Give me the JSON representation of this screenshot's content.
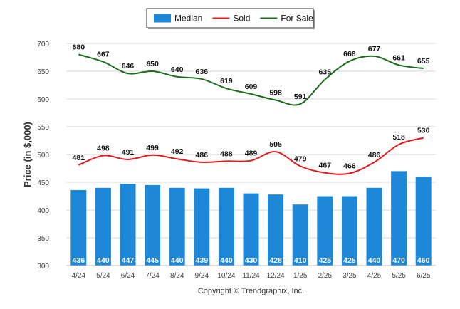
{
  "chart_data": {
    "type": "bar",
    "categories": [
      "4/24",
      "5/24",
      "6/24",
      "7/24",
      "8/24",
      "9/24",
      "10/24",
      "11/24",
      "12/24",
      "1/25",
      "2/25",
      "3/25",
      "4/25",
      "5/25",
      "6/25"
    ],
    "series": [
      {
        "name": "Median",
        "type": "bar",
        "color": "#1e88d8",
        "values": [
          436,
          440,
          447,
          445,
          440,
          439,
          440,
          430,
          428,
          410,
          425,
          425,
          440,
          470,
          460
        ]
      },
      {
        "name": "Sold",
        "type": "line",
        "color": "#e31a1c",
        "values": [
          481,
          498,
          491,
          499,
          492,
          486,
          488,
          489,
          505,
          479,
          467,
          466,
          486,
          518,
          530
        ]
      },
      {
        "name": "For Sale",
        "type": "line",
        "color": "#1a6b1a",
        "values": [
          680,
          667,
          646,
          650,
          640,
          636,
          619,
          609,
          598,
          591,
          635,
          668,
          677,
          661,
          655
        ]
      }
    ],
    "ylabel": "Price (in $,000)",
    "ylim": [
      300,
      700
    ],
    "yticks": [
      300,
      350,
      400,
      450,
      500,
      550,
      600,
      650,
      700
    ],
    "grid": true,
    "legend_position": "top-center"
  },
  "footer": {
    "copyright": "Copyright © Trendgraphix, Inc."
  }
}
